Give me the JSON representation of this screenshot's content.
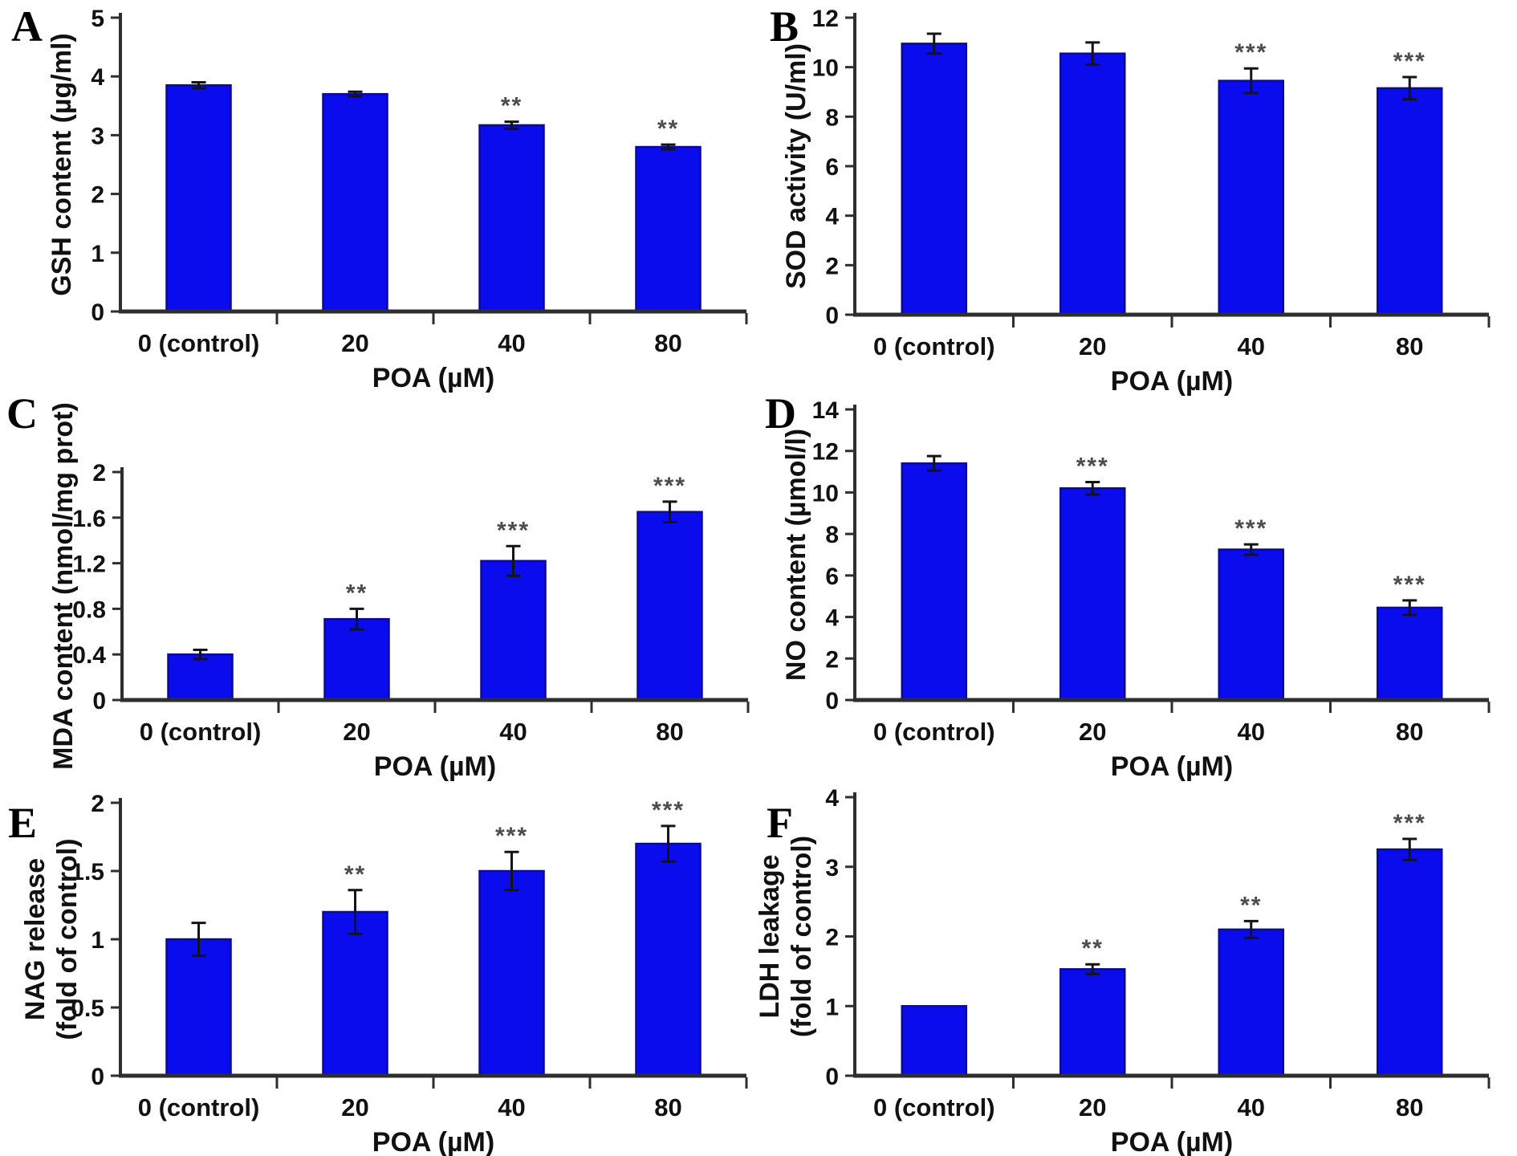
{
  "colors": {
    "bar_fill": "#0b0cee",
    "bar_edge": "#0a0a99",
    "error_bar": "#141414",
    "significance": "#4d4d4d",
    "axis": "#2e2e2e",
    "text": "#111111"
  },
  "chart_data": [
    {
      "type": "bar",
      "panel_label": "A",
      "ylabel": "GSH content (µg/ml)",
      "ylabel_lines": [
        "GSH content (µg/ml)"
      ],
      "xlabel": "POA (µM)",
      "categories": [
        "0 (control)",
        "20",
        "40",
        "80"
      ],
      "values": [
        3.85,
        3.7,
        3.17,
        2.8
      ],
      "errors": [
        0.05,
        0.04,
        0.06,
        0.04
      ],
      "significance": [
        "",
        "",
        "**",
        "**"
      ],
      "ylim": [
        0,
        5
      ],
      "ytick_step": 1,
      "grid": false,
      "legend": "none"
    },
    {
      "type": "bar",
      "panel_label": "B",
      "ylabel": "SOD activity (U/ml)",
      "ylabel_lines": [
        "SOD activity (U/ml)"
      ],
      "xlabel": "POA (µM)",
      "categories": [
        "0 (control)",
        "20",
        "40",
        "80"
      ],
      "values": [
        10.95,
        10.55,
        9.45,
        9.15
      ],
      "errors": [
        0.4,
        0.45,
        0.5,
        0.45
      ],
      "significance": [
        "",
        "",
        "***",
        "***"
      ],
      "ylim": [
        0,
        12
      ],
      "ytick_step": 2,
      "grid": false,
      "legend": "none"
    },
    {
      "type": "bar",
      "panel_label": "C",
      "ylabel": "MDA content (nmol/mg prot)",
      "ylabel_lines": [
        "MDA content (nmol/mg prot)"
      ],
      "xlabel": "POA (µM)",
      "categories": [
        "0 (control)",
        "20",
        "40",
        "80"
      ],
      "values": [
        0.4,
        0.71,
        1.22,
        1.65
      ],
      "errors": [
        0.04,
        0.09,
        0.13,
        0.09
      ],
      "significance": [
        "",
        "**",
        "***",
        "***"
      ],
      "ylim": [
        0,
        2
      ],
      "ytick_step": 0.4,
      "grid": false,
      "legend": "none"
    },
    {
      "type": "bar",
      "panel_label": "D",
      "ylabel": "NO content (µmol/l)",
      "ylabel_lines": [
        "NO content (µmol/l)"
      ],
      "xlabel": "POA (µM)",
      "categories": [
        "0 (control)",
        "20",
        "40",
        "80"
      ],
      "values": [
        11.4,
        10.2,
        7.25,
        4.45
      ],
      "errors": [
        0.35,
        0.3,
        0.25,
        0.35
      ],
      "significance": [
        "",
        "***",
        "***",
        "***"
      ],
      "ylim": [
        0,
        14
      ],
      "ytick_step": 2,
      "grid": false,
      "legend": "none"
    },
    {
      "type": "bar",
      "panel_label": "E",
      "ylabel": "NAG release (fold of control)",
      "ylabel_lines": [
        "NAG release",
        "(fold of control)"
      ],
      "xlabel": "POA (µM)",
      "categories": [
        "0 (control)",
        "20",
        "40",
        "80"
      ],
      "values": [
        1.0,
        1.2,
        1.5,
        1.7
      ],
      "errors": [
        0.12,
        0.16,
        0.14,
        0.13
      ],
      "significance": [
        "",
        "**",
        "***",
        "***"
      ],
      "ylim": [
        0,
        2
      ],
      "ytick_step": 0.5,
      "grid": false,
      "legend": "none"
    },
    {
      "type": "bar",
      "panel_label": "F",
      "ylabel": "LDH leakage (fold of control)",
      "ylabel_lines": [
        "LDH leakage",
        "(fold of control)"
      ],
      "xlabel": "POA (µM)",
      "categories": [
        "0 (control)",
        "20",
        "40",
        "80"
      ],
      "values": [
        1.0,
        1.53,
        2.1,
        3.25
      ],
      "errors": [
        0,
        0.07,
        0.12,
        0.15
      ],
      "significance": [
        "",
        "**",
        "**",
        "***"
      ],
      "ylim": [
        0,
        4
      ],
      "ytick_step": 1,
      "grid": false,
      "legend": "none"
    }
  ]
}
